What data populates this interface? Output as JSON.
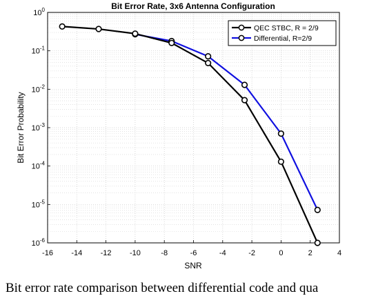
{
  "chart_data": {
    "type": "line",
    "title": "Bit Error Rate, 3x6 Antenna Configuration",
    "xlabel": "SNR",
    "ylabel": "Bit Error Probability",
    "xlim": [
      -16,
      4
    ],
    "ylim": [
      1e-06,
      1
    ],
    "yscale": "log",
    "grid": true,
    "legend_position": "top-right",
    "xticks": [
      -16,
      -14,
      -12,
      -10,
      -8,
      -6,
      -4,
      -2,
      0,
      2,
      4
    ],
    "yticks": [
      {
        "base": "10",
        "exp": "0",
        "value": 1
      },
      {
        "base": "10",
        "exp": "-1",
        "value": 0.1
      },
      {
        "base": "10",
        "exp": "-2",
        "value": 0.01
      },
      {
        "base": "10",
        "exp": "-3",
        "value": 0.001
      },
      {
        "base": "10",
        "exp": "-4",
        "value": 0.0001
      },
      {
        "base": "10",
        "exp": "-5",
        "value": 1e-05
      },
      {
        "base": "10",
        "exp": "-6",
        "value": 1e-06
      }
    ],
    "series": [
      {
        "name": "QEC STBC, R = 2/9",
        "color": "#000000",
        "x": [
          -15,
          -12.5,
          -10,
          -7.5,
          -5,
          -2.5,
          0,
          2.5
        ],
        "y": [
          0.43,
          0.37,
          0.28,
          0.16,
          0.048,
          0.0052,
          0.00013,
          1e-06
        ]
      },
      {
        "name": "Differential, R=2/9",
        "color": "#1010e0",
        "x": [
          -10,
          -7.5,
          -5,
          -2.5,
          0,
          2.5
        ],
        "y": [
          0.27,
          0.18,
          0.072,
          0.013,
          0.0007,
          7.2e-06
        ]
      }
    ]
  },
  "caption": "Bit error rate comparison between differential code and qua"
}
